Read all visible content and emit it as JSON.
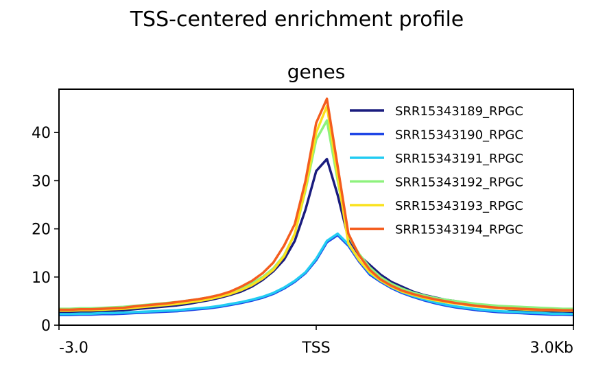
{
  "chart_data": {
    "type": "line",
    "title": "TSS-centered enrichment profile",
    "subtitle": "genes",
    "xlabel": "",
    "ylabel": "",
    "x": [
      -3.0,
      -2.875,
      -2.75,
      -2.625,
      -2.5,
      -2.375,
      -2.25,
      -2.125,
      -2.0,
      -1.875,
      -1.75,
      -1.625,
      -1.5,
      -1.375,
      -1.25,
      -1.125,
      -1.0,
      -0.875,
      -0.75,
      -0.625,
      -0.5,
      -0.375,
      -0.25,
      -0.125,
      0.0,
      0.125,
      0.25,
      0.375,
      0.5,
      0.625,
      0.75,
      0.875,
      1.0,
      1.125,
      1.25,
      1.375,
      1.5,
      1.625,
      1.75,
      1.875,
      2.0,
      2.125,
      2.25,
      2.375,
      2.5,
      2.625,
      2.75,
      2.875,
      3.0
    ],
    "xlim": [
      -3.0,
      3.0
    ],
    "ylim": [
      0,
      49
    ],
    "x_ticks": [
      {
        "value": -3.0,
        "label": "-3.0"
      },
      {
        "value": 0.0,
        "label": "TSS"
      },
      {
        "value": 3.0,
        "label": "3.0Kb"
      }
    ],
    "y_ticks": [
      0,
      10,
      20,
      30,
      40
    ],
    "y_tick_labels": [
      "0",
      "10",
      "20",
      "30",
      "40"
    ],
    "legend_position": "top-right",
    "grid": false,
    "series": [
      {
        "name": "SRR15343189_RPGC",
        "color": "#1a1c7e",
        "values": [
          2.6,
          2.6,
          2.7,
          2.8,
          2.9,
          3.0,
          3.1,
          3.3,
          3.5,
          3.7,
          3.9,
          4.1,
          4.4,
          4.8,
          5.2,
          5.7,
          6.3,
          7.0,
          8.0,
          9.4,
          11.2,
          13.6,
          17.5,
          24.0,
          32.0,
          34.5,
          27.0,
          18.0,
          14.5,
          12.5,
          10.5,
          9.0,
          8.0,
          7.0,
          6.3,
          5.8,
          5.3,
          5.0,
          4.6,
          4.3,
          4.0,
          3.6,
          3.3,
          3.1,
          3.0,
          2.8,
          2.7,
          2.6,
          2.6
        ]
      },
      {
        "name": "SRR15343190_RPGC",
        "color": "#1f46e6",
        "values": [
          2.1,
          2.1,
          2.2,
          2.2,
          2.3,
          2.3,
          2.4,
          2.5,
          2.6,
          2.7,
          2.8,
          2.9,
          3.1,
          3.3,
          3.5,
          3.8,
          4.2,
          4.6,
          5.1,
          5.7,
          6.5,
          7.6,
          9.0,
          10.8,
          13.5,
          17.2,
          18.7,
          16.5,
          13.2,
          10.5,
          9.0,
          7.7,
          6.7,
          5.9,
          5.2,
          4.6,
          4.1,
          3.7,
          3.4,
          3.1,
          2.9,
          2.7,
          2.6,
          2.5,
          2.4,
          2.3,
          2.2,
          2.2,
          2.1
        ]
      },
      {
        "name": "SRR15343191_RPGC",
        "color": "#22ccf2",
        "values": [
          2.3,
          2.3,
          2.4,
          2.4,
          2.5,
          2.5,
          2.6,
          2.7,
          2.8,
          2.9,
          3.0,
          3.1,
          3.3,
          3.5,
          3.7,
          4.0,
          4.4,
          4.8,
          5.3,
          5.9,
          6.7,
          7.8,
          9.2,
          11.0,
          13.8,
          17.5,
          19.0,
          16.8,
          13.5,
          10.8,
          9.2,
          7.9,
          6.9,
          6.1,
          5.4,
          4.8,
          4.3,
          3.9,
          3.6,
          3.3,
          3.1,
          2.9,
          2.8,
          2.7,
          2.6,
          2.5,
          2.4,
          2.4,
          2.3
        ]
      },
      {
        "name": "SRR15343192_RPGC",
        "color": "#8ef27d",
        "values": [
          3.4,
          3.4,
          3.5,
          3.5,
          3.6,
          3.7,
          3.8,
          4.0,
          4.2,
          4.4,
          4.6,
          4.8,
          5.1,
          5.4,
          5.8,
          6.3,
          6.9,
          7.7,
          8.7,
          10.0,
          11.8,
          14.5,
          19.0,
          28.0,
          38.5,
          42.5,
          30.0,
          18.5,
          14.8,
          12.0,
          10.0,
          8.6,
          7.6,
          6.8,
          6.2,
          5.7,
          5.3,
          5.0,
          4.7,
          4.4,
          4.2,
          4.0,
          3.9,
          3.8,
          3.7,
          3.6,
          3.5,
          3.4,
          3.4
        ]
      },
      {
        "name": "SRR15343193_RPGC",
        "color": "#fae21d",
        "values": [
          3.0,
          3.0,
          3.1,
          3.1,
          3.2,
          3.3,
          3.4,
          3.6,
          3.8,
          4.0,
          4.2,
          4.4,
          4.7,
          5.0,
          5.4,
          5.9,
          6.5,
          7.3,
          8.3,
          9.7,
          11.5,
          14.3,
          19.0,
          28.5,
          40.0,
          45.5,
          31.0,
          17.0,
          13.5,
          11.0,
          9.3,
          8.0,
          7.0,
          6.3,
          5.7,
          5.2,
          4.8,
          4.5,
          4.2,
          3.9,
          3.7,
          3.5,
          3.4,
          3.3,
          3.2,
          3.1,
          3.1,
          3.0,
          3.0
        ]
      },
      {
        "name": "SRR15343194_RPGC",
        "color": "#f45d1e",
        "values": [
          3.2,
          3.2,
          3.3,
          3.3,
          3.4,
          3.5,
          3.6,
          3.9,
          4.1,
          4.3,
          4.5,
          4.8,
          5.1,
          5.4,
          5.8,
          6.3,
          7.0,
          8.0,
          9.2,
          10.8,
          13.0,
          16.5,
          21.0,
          30.0,
          42.0,
          47.0,
          33.0,
          19.0,
          14.5,
          11.5,
          9.5,
          8.2,
          7.2,
          6.5,
          5.9,
          5.4,
          5.0,
          4.6,
          4.3,
          4.0,
          3.8,
          3.6,
          3.5,
          3.4,
          3.3,
          3.2,
          3.2,
          3.1,
          3.1
        ]
      }
    ]
  }
}
